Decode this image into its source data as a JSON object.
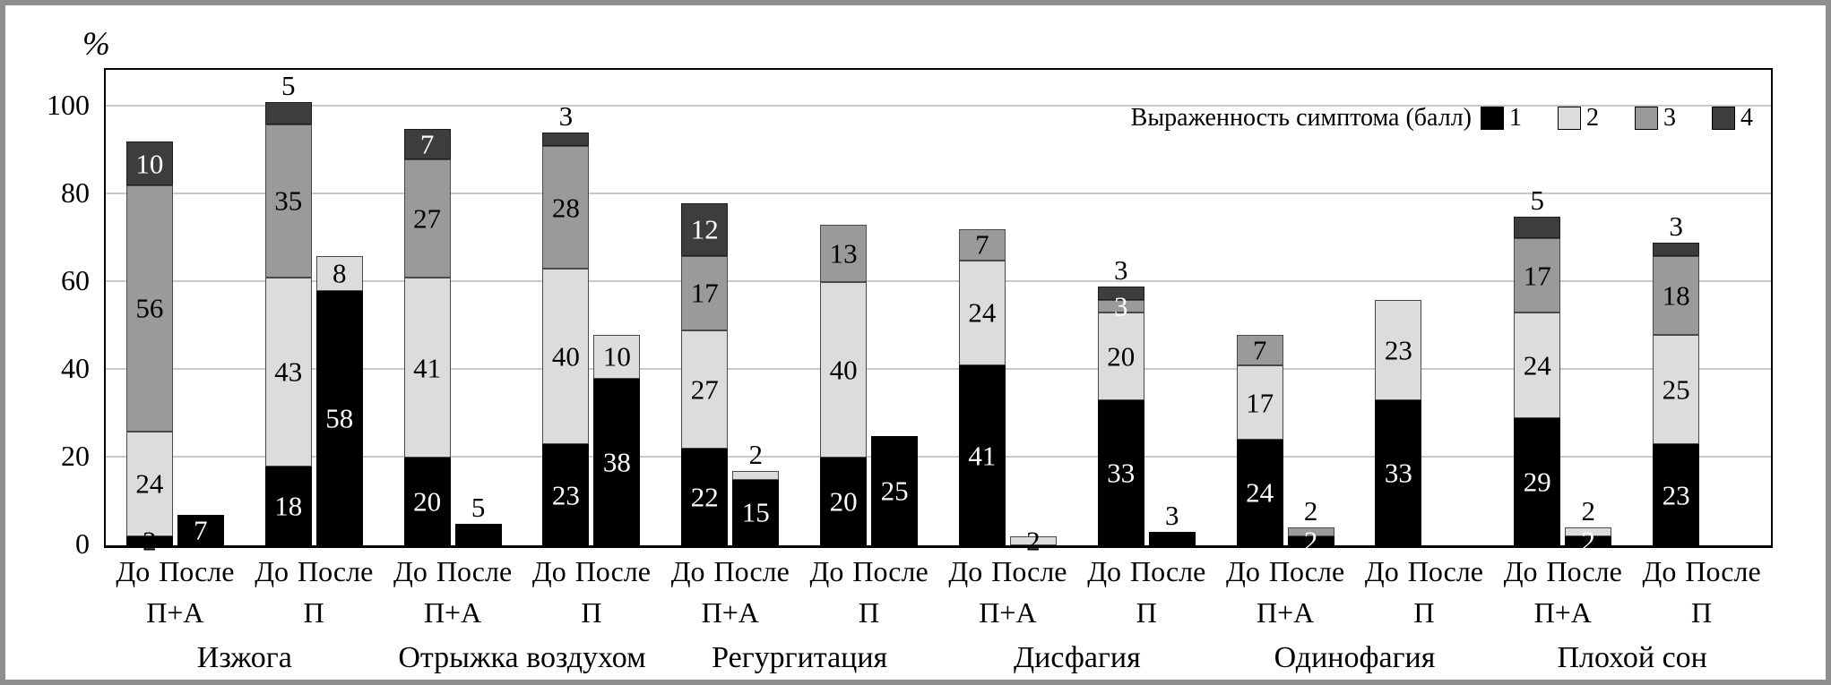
{
  "chart_data": {
    "type": "bar",
    "subtype": "stacked-vertical",
    "ylabel": "%",
    "yticks": [
      0,
      20,
      40,
      60,
      80,
      100
    ],
    "ylim": [
      0,
      108
    ],
    "grid": true,
    "legend": {
      "title": "Выраженность симптома (балл)",
      "position": "top-right",
      "items": [
        {
          "label": "1",
          "color": "#000000"
        },
        {
          "label": "2",
          "color": "#dcdcdc"
        },
        {
          "label": "3",
          "color": "#9a9a9a"
        },
        {
          "label": "4",
          "color": "#3d3d3d"
        }
      ]
    },
    "score_colors": {
      "1": "#000000",
      "2": "#dcdcdc",
      "3": "#9a9a9a",
      "4": "#3d3d3d"
    },
    "pair_labels": [
      "До",
      "После"
    ],
    "groups": [
      {
        "name": "Изжога",
        "subgroups": [
          {
            "name": "П+А",
            "bars": [
              {
                "label": "До",
                "segments": [
                  {
                    "score": 1,
                    "value": 2,
                    "text": "2",
                    "text_color": "black"
                  },
                  {
                    "score": 2,
                    "value": 24,
                    "text": "24",
                    "text_color": "black"
                  },
                  {
                    "score": 3,
                    "value": 56,
                    "text": "56",
                    "text_color": "black"
                  },
                  {
                    "score": 4,
                    "value": 10,
                    "text": "10",
                    "text_color": "white"
                  }
                ]
              },
              {
                "label": "После",
                "segments": [
                  {
                    "score": 1,
                    "value": 7,
                    "text": "7",
                    "text_color": "white"
                  }
                ]
              }
            ]
          },
          {
            "name": "П",
            "bars": [
              {
                "label": "До",
                "above_label": "5",
                "segments": [
                  {
                    "score": 1,
                    "value": 18,
                    "text": "18",
                    "text_color": "white"
                  },
                  {
                    "score": 2,
                    "value": 43,
                    "text": "43",
                    "text_color": "black"
                  },
                  {
                    "score": 3,
                    "value": 35,
                    "text": "35",
                    "text_color": "black"
                  },
                  {
                    "score": 4,
                    "value": 5
                  }
                ]
              },
              {
                "label": "После",
                "segments": [
                  {
                    "score": 1,
                    "value": 58,
                    "text": "58",
                    "text_color": "white"
                  },
                  {
                    "score": 2,
                    "value": 8,
                    "text": "8",
                    "text_color": "black"
                  }
                ]
              }
            ]
          }
        ]
      },
      {
        "name": "Отрыжка воздухом",
        "subgroups": [
          {
            "name": "П+А",
            "bars": [
              {
                "label": "До",
                "segments": [
                  {
                    "score": 1,
                    "value": 20,
                    "text": "20",
                    "text_color": "white"
                  },
                  {
                    "score": 2,
                    "value": 41,
                    "text": "41",
                    "text_color": "black"
                  },
                  {
                    "score": 3,
                    "value": 27,
                    "text": "27",
                    "text_color": "black"
                  },
                  {
                    "score": 4,
                    "value": 7,
                    "text": "7",
                    "text_color": "white"
                  }
                ]
              },
              {
                "label": "После",
                "above_label": "5",
                "segments": [
                  {
                    "score": 1,
                    "value": 5
                  }
                ]
              }
            ]
          },
          {
            "name": "П",
            "bars": [
              {
                "label": "До",
                "above_label": "3",
                "segments": [
                  {
                    "score": 1,
                    "value": 23,
                    "text": "23",
                    "text_color": "white"
                  },
                  {
                    "score": 2,
                    "value": 40,
                    "text": "40",
                    "text_color": "black"
                  },
                  {
                    "score": 3,
                    "value": 28,
                    "text": "28",
                    "text_color": "black"
                  },
                  {
                    "score": 4,
                    "value": 3
                  }
                ]
              },
              {
                "label": "После",
                "segments": [
                  {
                    "score": 1,
                    "value": 38,
                    "text": "38",
                    "text_color": "white"
                  },
                  {
                    "score": 2,
                    "value": 10,
                    "text": "10",
                    "text_color": "black"
                  }
                ]
              }
            ]
          }
        ]
      },
      {
        "name": "Регургитация",
        "subgroups": [
          {
            "name": "П+А",
            "bars": [
              {
                "label": "До",
                "segments": [
                  {
                    "score": 1,
                    "value": 22,
                    "text": "22",
                    "text_color": "white"
                  },
                  {
                    "score": 2,
                    "value": 27,
                    "text": "27",
                    "text_color": "black"
                  },
                  {
                    "score": 3,
                    "value": 17,
                    "text": "17",
                    "text_color": "black"
                  },
                  {
                    "score": 4,
                    "value": 12,
                    "text": "12",
                    "text_color": "white"
                  }
                ]
              },
              {
                "label": "После",
                "above_label": "2",
                "segments": [
                  {
                    "score": 1,
                    "value": 15,
                    "text": "15",
                    "text_color": "white"
                  },
                  {
                    "score": 2,
                    "value": 2
                  }
                ]
              }
            ]
          },
          {
            "name": "П",
            "bars": [
              {
                "label": "До",
                "segments": [
                  {
                    "score": 1,
                    "value": 20,
                    "text": "20",
                    "text_color": "white"
                  },
                  {
                    "score": 2,
                    "value": 40,
                    "text": "40",
                    "text_color": "black"
                  },
                  {
                    "score": 3,
                    "value": 13,
                    "text": "13",
                    "text_color": "black"
                  }
                ]
              },
              {
                "label": "После",
                "segments": [
                  {
                    "score": 1,
                    "value": 25,
                    "text": "25",
                    "text_color": "white"
                  }
                ]
              }
            ]
          }
        ]
      },
      {
        "name": "Дисфагия",
        "subgroups": [
          {
            "name": "П+А",
            "bars": [
              {
                "label": "До",
                "segments": [
                  {
                    "score": 1,
                    "value": 41,
                    "text": "41",
                    "text_color": "white"
                  },
                  {
                    "score": 2,
                    "value": 24,
                    "text": "24",
                    "text_color": "black"
                  },
                  {
                    "score": 3,
                    "value": 7,
                    "text": "7",
                    "text_color": "black"
                  }
                ]
              },
              {
                "label": "После",
                "segments": [
                  {
                    "score": 2,
                    "value": 2,
                    "text": "2",
                    "text_color": "black"
                  }
                ]
              }
            ]
          },
          {
            "name": "П",
            "bars": [
              {
                "label": "До",
                "above_label": "3",
                "segments": [
                  {
                    "score": 1,
                    "value": 33,
                    "text": "33",
                    "text_color": "white"
                  },
                  {
                    "score": 2,
                    "value": 20,
                    "text": "20",
                    "text_color": "black"
                  },
                  {
                    "score": 3,
                    "value": 3,
                    "text": "3",
                    "text_color": "white"
                  },
                  {
                    "score": 4,
                    "value": 3
                  }
                ]
              },
              {
                "label": "После",
                "above_label": "3",
                "segments": [
                  {
                    "score": 1,
                    "value": 3
                  }
                ]
              }
            ]
          }
        ]
      },
      {
        "name": "Одинофагия",
        "subgroups": [
          {
            "name": "П+А",
            "bars": [
              {
                "label": "До",
                "segments": [
                  {
                    "score": 1,
                    "value": 24,
                    "text": "24",
                    "text_color": "white"
                  },
                  {
                    "score": 2,
                    "value": 17,
                    "text": "17",
                    "text_color": "black"
                  },
                  {
                    "score": 3,
                    "value": 7,
                    "text": "7",
                    "text_color": "black"
                  }
                ]
              },
              {
                "label": "После",
                "above_label": "2",
                "segments": [
                  {
                    "score": 1,
                    "value": 2,
                    "text": "2",
                    "text_color": "white"
                  },
                  {
                    "score": 3,
                    "value": 2
                  }
                ]
              }
            ]
          },
          {
            "name": "П",
            "bars": [
              {
                "label": "До",
                "segments": [
                  {
                    "score": 1,
                    "value": 33,
                    "text": "33",
                    "text_color": "white"
                  },
                  {
                    "score": 2,
                    "value": 23,
                    "text": "23",
                    "text_color": "black"
                  }
                ]
              },
              {
                "label": "После",
                "segments": []
              }
            ]
          }
        ]
      },
      {
        "name": "Плохой сон",
        "subgroups": [
          {
            "name": "П+А",
            "bars": [
              {
                "label": "До",
                "above_label": "5",
                "segments": [
                  {
                    "score": 1,
                    "value": 29,
                    "text": "29",
                    "text_color": "white"
                  },
                  {
                    "score": 2,
                    "value": 24,
                    "text": "24",
                    "text_color": "black"
                  },
                  {
                    "score": 3,
                    "value": 17,
                    "text": "17",
                    "text_color": "black"
                  },
                  {
                    "score": 4,
                    "value": 5
                  }
                ]
              },
              {
                "label": "После",
                "above_label": "2",
                "segments": [
                  {
                    "score": 1,
                    "value": 2,
                    "text": "2",
                    "text_color": "white"
                  },
                  {
                    "score": 2,
                    "value": 2
                  }
                ]
              }
            ]
          },
          {
            "name": "П",
            "bars": [
              {
                "label": "До",
                "above_label": "3",
                "segments": [
                  {
                    "score": 1,
                    "value": 23,
                    "text": "23",
                    "text_color": "white"
                  },
                  {
                    "score": 2,
                    "value": 25,
                    "text": "25",
                    "text_color": "black"
                  },
                  {
                    "score": 3,
                    "value": 18,
                    "text": "18",
                    "text_color": "black"
                  },
                  {
                    "score": 4,
                    "value": 3
                  }
                ]
              },
              {
                "label": "После",
                "segments": []
              }
            ]
          }
        ]
      }
    ]
  }
}
